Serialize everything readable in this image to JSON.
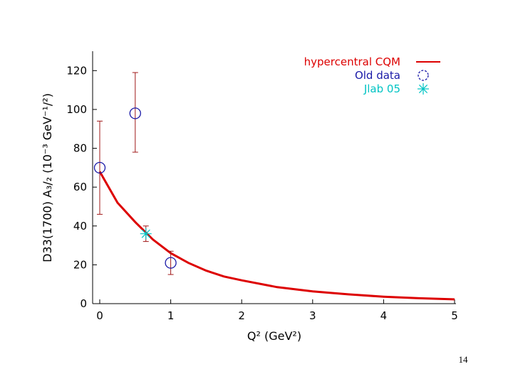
{
  "chart_data": {
    "type": "scatter",
    "xlabel": "Q² (GeV²)",
    "ylabel": "D33(1700) A₃/₂ (10⁻³ GeV⁻¹/²)",
    "xlim": [
      0,
      5
    ],
    "ylim": [
      0,
      130
    ],
    "xticks": [
      0,
      1,
      2,
      3,
      4,
      5
    ],
    "yticks": [
      0,
      20,
      40,
      60,
      80,
      100,
      120
    ],
    "grid": false,
    "legend_position": "top-right",
    "series": [
      {
        "name": "hypercentral CQM",
        "kind": "line",
        "color": "#dd0000",
        "x": [
          0,
          0.25,
          0.5,
          0.75,
          1.0,
          1.25,
          1.5,
          1.75,
          2.0,
          2.5,
          3.0,
          3.5,
          4.0,
          4.5,
          5.0
        ],
        "y": [
          68,
          52,
          42,
          33,
          26,
          21,
          17,
          14,
          12,
          8.5,
          6.3,
          4.8,
          3.6,
          2.8,
          2.2
        ]
      },
      {
        "name": "Old data",
        "kind": "points",
        "marker": "circle",
        "color": "#1a1aa8",
        "error_color": "#a01818",
        "points": [
          {
            "x": 0.0,
            "y": 70,
            "err_low": 46,
            "err_high": 94
          },
          {
            "x": 0.5,
            "y": 98,
            "err_low": 78,
            "err_high": 119
          },
          {
            "x": 1.0,
            "y": 21,
            "err_low": 15,
            "err_high": 27
          }
        ]
      },
      {
        "name": "Jlab 05",
        "kind": "points",
        "marker": "star",
        "color": "#00c4c4",
        "error_color": "#a01818",
        "points": [
          {
            "x": 0.65,
            "y": 36,
            "err_low": 32,
            "err_high": 40
          }
        ]
      }
    ]
  },
  "slide": {
    "number": "14"
  }
}
